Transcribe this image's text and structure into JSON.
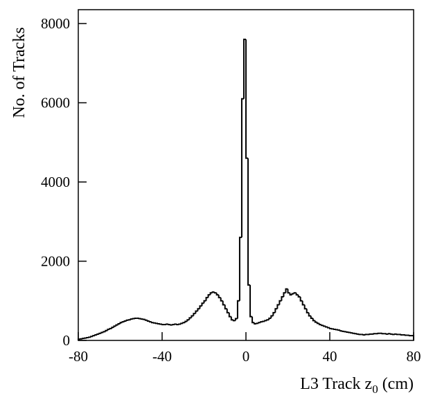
{
  "chart_data": {
    "type": "histogram",
    "xlabel": {
      "main": "L3 Track z",
      "sub": "0",
      "unit": "(cm)"
    },
    "ylabel": "No. of Tracks",
    "bins": [
      -80,
      -79,
      -78,
      -77,
      -76,
      -75,
      -74,
      -73,
      -72,
      -71,
      -70,
      -69,
      -68,
      -67,
      -66,
      -65,
      -64,
      -63,
      -62,
      -61,
      -60,
      -59,
      -58,
      -57,
      -56,
      -55,
      -54,
      -53,
      -52,
      -51,
      -50,
      -49,
      -48,
      -47,
      -46,
      -45,
      -44,
      -43,
      -42,
      -41,
      -40,
      -39,
      -38,
      -37,
      -36,
      -35,
      -34,
      -33,
      -32,
      -31,
      -30,
      -29,
      -28,
      -27,
      -26,
      -25,
      -24,
      -23,
      -22,
      -21,
      -20,
      -19,
      -18,
      -17,
      -16,
      -15,
      -14,
      -13,
      -12,
      -11,
      -10,
      -9,
      -8,
      -7,
      -6,
      -5,
      -4,
      -3,
      -2,
      -1,
      0,
      1,
      2,
      3,
      4,
      5,
      6,
      7,
      8,
      9,
      10,
      11,
      12,
      13,
      14,
      15,
      16,
      17,
      18,
      19,
      20,
      21,
      22,
      23,
      24,
      25,
      26,
      27,
      28,
      29,
      30,
      31,
      32,
      33,
      34,
      35,
      36,
      37,
      38,
      39,
      40,
      41,
      42,
      43,
      44,
      45,
      46,
      47,
      48,
      49,
      50,
      51,
      52,
      53,
      54,
      55,
      56,
      57,
      58,
      59,
      60,
      61,
      62,
      63,
      64,
      65,
      66,
      67,
      68,
      69,
      70,
      71,
      72,
      73,
      74,
      75,
      76,
      77,
      78,
      79,
      80
    ],
    "values": [
      30,
      40,
      50,
      60,
      70,
      80,
      100,
      120,
      140,
      160,
      180,
      200,
      220,
      250,
      280,
      300,
      330,
      360,
      390,
      420,
      450,
      470,
      490,
      510,
      520,
      540,
      550,
      560,
      560,
      550,
      540,
      530,
      510,
      490,
      470,
      450,
      440,
      430,
      420,
      410,
      400,
      400,
      410,
      400,
      390,
      400,
      410,
      400,
      410,
      430,
      450,
      480,
      520,
      570,
      620,
      680,
      740,
      800,
      870,
      940,
      1000,
      1080,
      1150,
      1200,
      1220,
      1200,
      1150,
      1080,
      1000,
      900,
      800,
      700,
      600,
      520,
      500,
      550,
      1000,
      2600,
      6100,
      7600,
      4600,
      1400,
      600,
      450,
      420,
      430,
      450,
      470,
      480,
      500,
      520,
      560,
      620,
      700,
      800,
      900,
      1000,
      1100,
      1200,
      1300,
      1200,
      1150,
      1180,
      1200,
      1150,
      1100,
      1000,
      900,
      800,
      700,
      620,
      560,
      500,
      460,
      430,
      400,
      380,
      360,
      340,
      320,
      300,
      290,
      280,
      270,
      260,
      240,
      230,
      220,
      210,
      200,
      190,
      180,
      170,
      160,
      150,
      150,
      140,
      150,
      150,
      160,
      160,
      170,
      170,
      180,
      180,
      170,
      170,
      160,
      170,
      160,
      150,
      160,
      150,
      150,
      140,
      140,
      130,
      130,
      120,
      120
    ],
    "color": "#000000",
    "xlim": [
      -80,
      80
    ],
    "xticks": [
      -80,
      -40,
      0,
      40,
      80
    ],
    "ylim": [
      0,
      8350
    ],
    "yticks": [
      0,
      2000,
      4000,
      6000,
      8000
    ]
  }
}
